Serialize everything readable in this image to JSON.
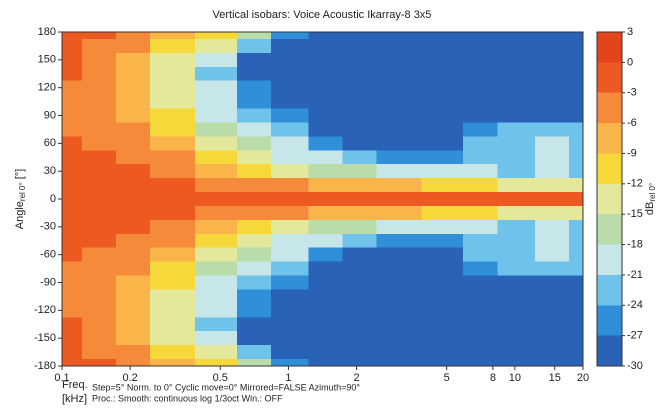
{
  "chart_data": {
    "type": "heatmap",
    "title": "Vertical isobars: Voice Acoustic  Ikarray-8  3x5",
    "xlabel": [
      "Freq.",
      "[kHz]"
    ],
    "ylabel": {
      "text": "Angle",
      "sub": "rel 0°",
      "suffix": " [°]"
    },
    "colorbar_label": {
      "text": "dB",
      "sub": "rel 0°"
    },
    "notes": [
      "Step=5°   Norm. to 0°   Cyclic move=0°   Mirrored=FALSE   Azimuth=90°",
      "Proc.: Smooth: continuous log 1/3oct   Win.: OFF"
    ],
    "log_x": true,
    "xlim": [
      0.1,
      20
    ],
    "xticks": [
      0.1,
      0.2,
      0.5,
      1,
      2,
      5,
      8,
      10,
      15,
      20
    ],
    "ylim": [
      -180,
      180
    ],
    "yticks": [
      180,
      150,
      120,
      90,
      60,
      30,
      0,
      -30,
      -60,
      -90,
      -120,
      -150,
      -180
    ],
    "levels": [
      3,
      0,
      -3,
      -6,
      -9,
      -12,
      -15,
      -18,
      -21,
      -24,
      -27,
      -30
    ],
    "colors": [
      "#e2451c",
      "#ec5a22",
      "#f58b3a",
      "#f9b54a",
      "#f6d83a",
      "#e4e89a",
      "#b9dcaa",
      "#c7e6e9",
      "#6fc2ea",
      "#2f8fd9",
      "#2a62b8",
      "#2b3a94"
    ],
    "x": [
      0.1,
      0.15,
      0.2,
      0.3,
      0.5,
      0.7,
      1,
      1.5,
      2,
      3,
      5,
      7,
      10,
      15,
      20
    ],
    "y": [
      180,
      165,
      150,
      135,
      120,
      105,
      90,
      75,
      60,
      45,
      30,
      15,
      0,
      -15,
      -30,
      -45,
      -60,
      -75,
      -90,
      -105,
      -120,
      -135,
      -150,
      -165,
      -180
    ],
    "z": [
      [
        -1,
        -2,
        -4,
        -7,
        -11,
        -17,
        -25,
        -29,
        -29,
        -29,
        -29,
        -29,
        -29,
        -29,
        -29
      ],
      [
        -2,
        -3,
        -5,
        -9,
        -14,
        -22,
        -28,
        -29,
        -29,
        -29,
        -29,
        -29,
        -29,
        -29,
        -29
      ],
      [
        -2,
        -4,
        -6,
        -12,
        -18,
        -28,
        -29,
        -29,
        -29,
        -29,
        -29,
        -29,
        -29,
        -29,
        -29
      ],
      [
        -2,
        -4,
        -7,
        -14,
        -21,
        -27,
        -29,
        -29,
        -29,
        -29,
        -29,
        -29,
        -29,
        -29,
        -29
      ],
      [
        -3,
        -4,
        -7,
        -14,
        -20,
        -26,
        -27,
        -29,
        -29,
        -29,
        -29,
        -29,
        -29,
        -29,
        -29
      ],
      [
        -3,
        -4,
        -7,
        -13,
        -20,
        -24,
        -27,
        -28,
        -29,
        -29,
        -29,
        -29,
        -29,
        -29,
        -29
      ],
      [
        -3,
        -4,
        -6,
        -11,
        -18,
        -21,
        -25,
        -28,
        -29,
        -29,
        -29,
        -29,
        -28,
        -28,
        -28
      ],
      [
        -3,
        -3,
        -5,
        -9,
        -16,
        -19,
        -23,
        -27,
        -28,
        -29,
        -29,
        -26,
        -22,
        -21,
        -22
      ],
      [
        -2,
        -3,
        -4,
        -7,
        -13,
        -17,
        -20,
        -24,
        -27,
        -28,
        -28,
        -22,
        -21,
        -20,
        -21
      ],
      [
        -2,
        -2,
        -3,
        -5,
        -10,
        -14,
        -18,
        -20,
        -22,
        -25,
        -26,
        -22,
        -21,
        -20,
        -21
      ],
      [
        -1,
        -2,
        -2,
        -3,
        -6,
        -9,
        -12,
        -15,
        -17,
        -19,
        -20,
        -19,
        -21,
        -20,
        -22
      ],
      [
        -1,
        -1,
        -1,
        -2,
        -3,
        -4,
        -5,
        -6,
        -6,
        -8,
        -10,
        -10,
        -12,
        -12,
        -14
      ],
      [
        0,
        0,
        0,
        0,
        0,
        0,
        0,
        0,
        0,
        0,
        0,
        0,
        0,
        0,
        0
      ],
      [
        -1,
        -1,
        -1,
        -2,
        -3,
        -4,
        -5,
        -6,
        -6,
        -8,
        -10,
        -10,
        -12,
        -12,
        -14
      ],
      [
        -1,
        -2,
        -2,
        -3,
        -6,
        -9,
        -12,
        -15,
        -17,
        -19,
        -20,
        -19,
        -21,
        -20,
        -22
      ],
      [
        -2,
        -2,
        -3,
        -5,
        -10,
        -14,
        -18,
        -20,
        -22,
        -25,
        -26,
        -22,
        -21,
        -20,
        -21
      ],
      [
        -2,
        -3,
        -4,
        -7,
        -13,
        -17,
        -20,
        -24,
        -27,
        -28,
        -28,
        -22,
        -21,
        -20,
        -21
      ],
      [
        -3,
        -3,
        -5,
        -9,
        -16,
        -19,
        -23,
        -27,
        -28,
        -29,
        -29,
        -26,
        -22,
        -21,
        -22
      ],
      [
        -3,
        -4,
        -6,
        -11,
        -18,
        -21,
        -25,
        -28,
        -29,
        -29,
        -29,
        -29,
        -28,
        -28,
        -28
      ],
      [
        -3,
        -4,
        -7,
        -13,
        -20,
        -24,
        -27,
        -28,
        -29,
        -29,
        -29,
        -29,
        -29,
        -29,
        -29
      ],
      [
        -3,
        -4,
        -7,
        -14,
        -20,
        -26,
        -27,
        -29,
        -29,
        -29,
        -29,
        -29,
        -29,
        -29,
        -29
      ],
      [
        -2,
        -4,
        -7,
        -14,
        -21,
        -27,
        -29,
        -29,
        -29,
        -29,
        -29,
        -29,
        -29,
        -29,
        -29
      ],
      [
        -2,
        -4,
        -6,
        -12,
        -18,
        -28,
        -29,
        -29,
        -29,
        -29,
        -29,
        -29,
        -29,
        -29,
        -29
      ],
      [
        -2,
        -3,
        -5,
        -9,
        -14,
        -22,
        -28,
        -29,
        -29,
        -29,
        -29,
        -29,
        -29,
        -29,
        -29
      ],
      [
        -1,
        -2,
        -4,
        -7,
        -11,
        -17,
        -25,
        -29,
        -29,
        -29,
        -29,
        -29,
        -29,
        -29,
        -29
      ]
    ]
  }
}
